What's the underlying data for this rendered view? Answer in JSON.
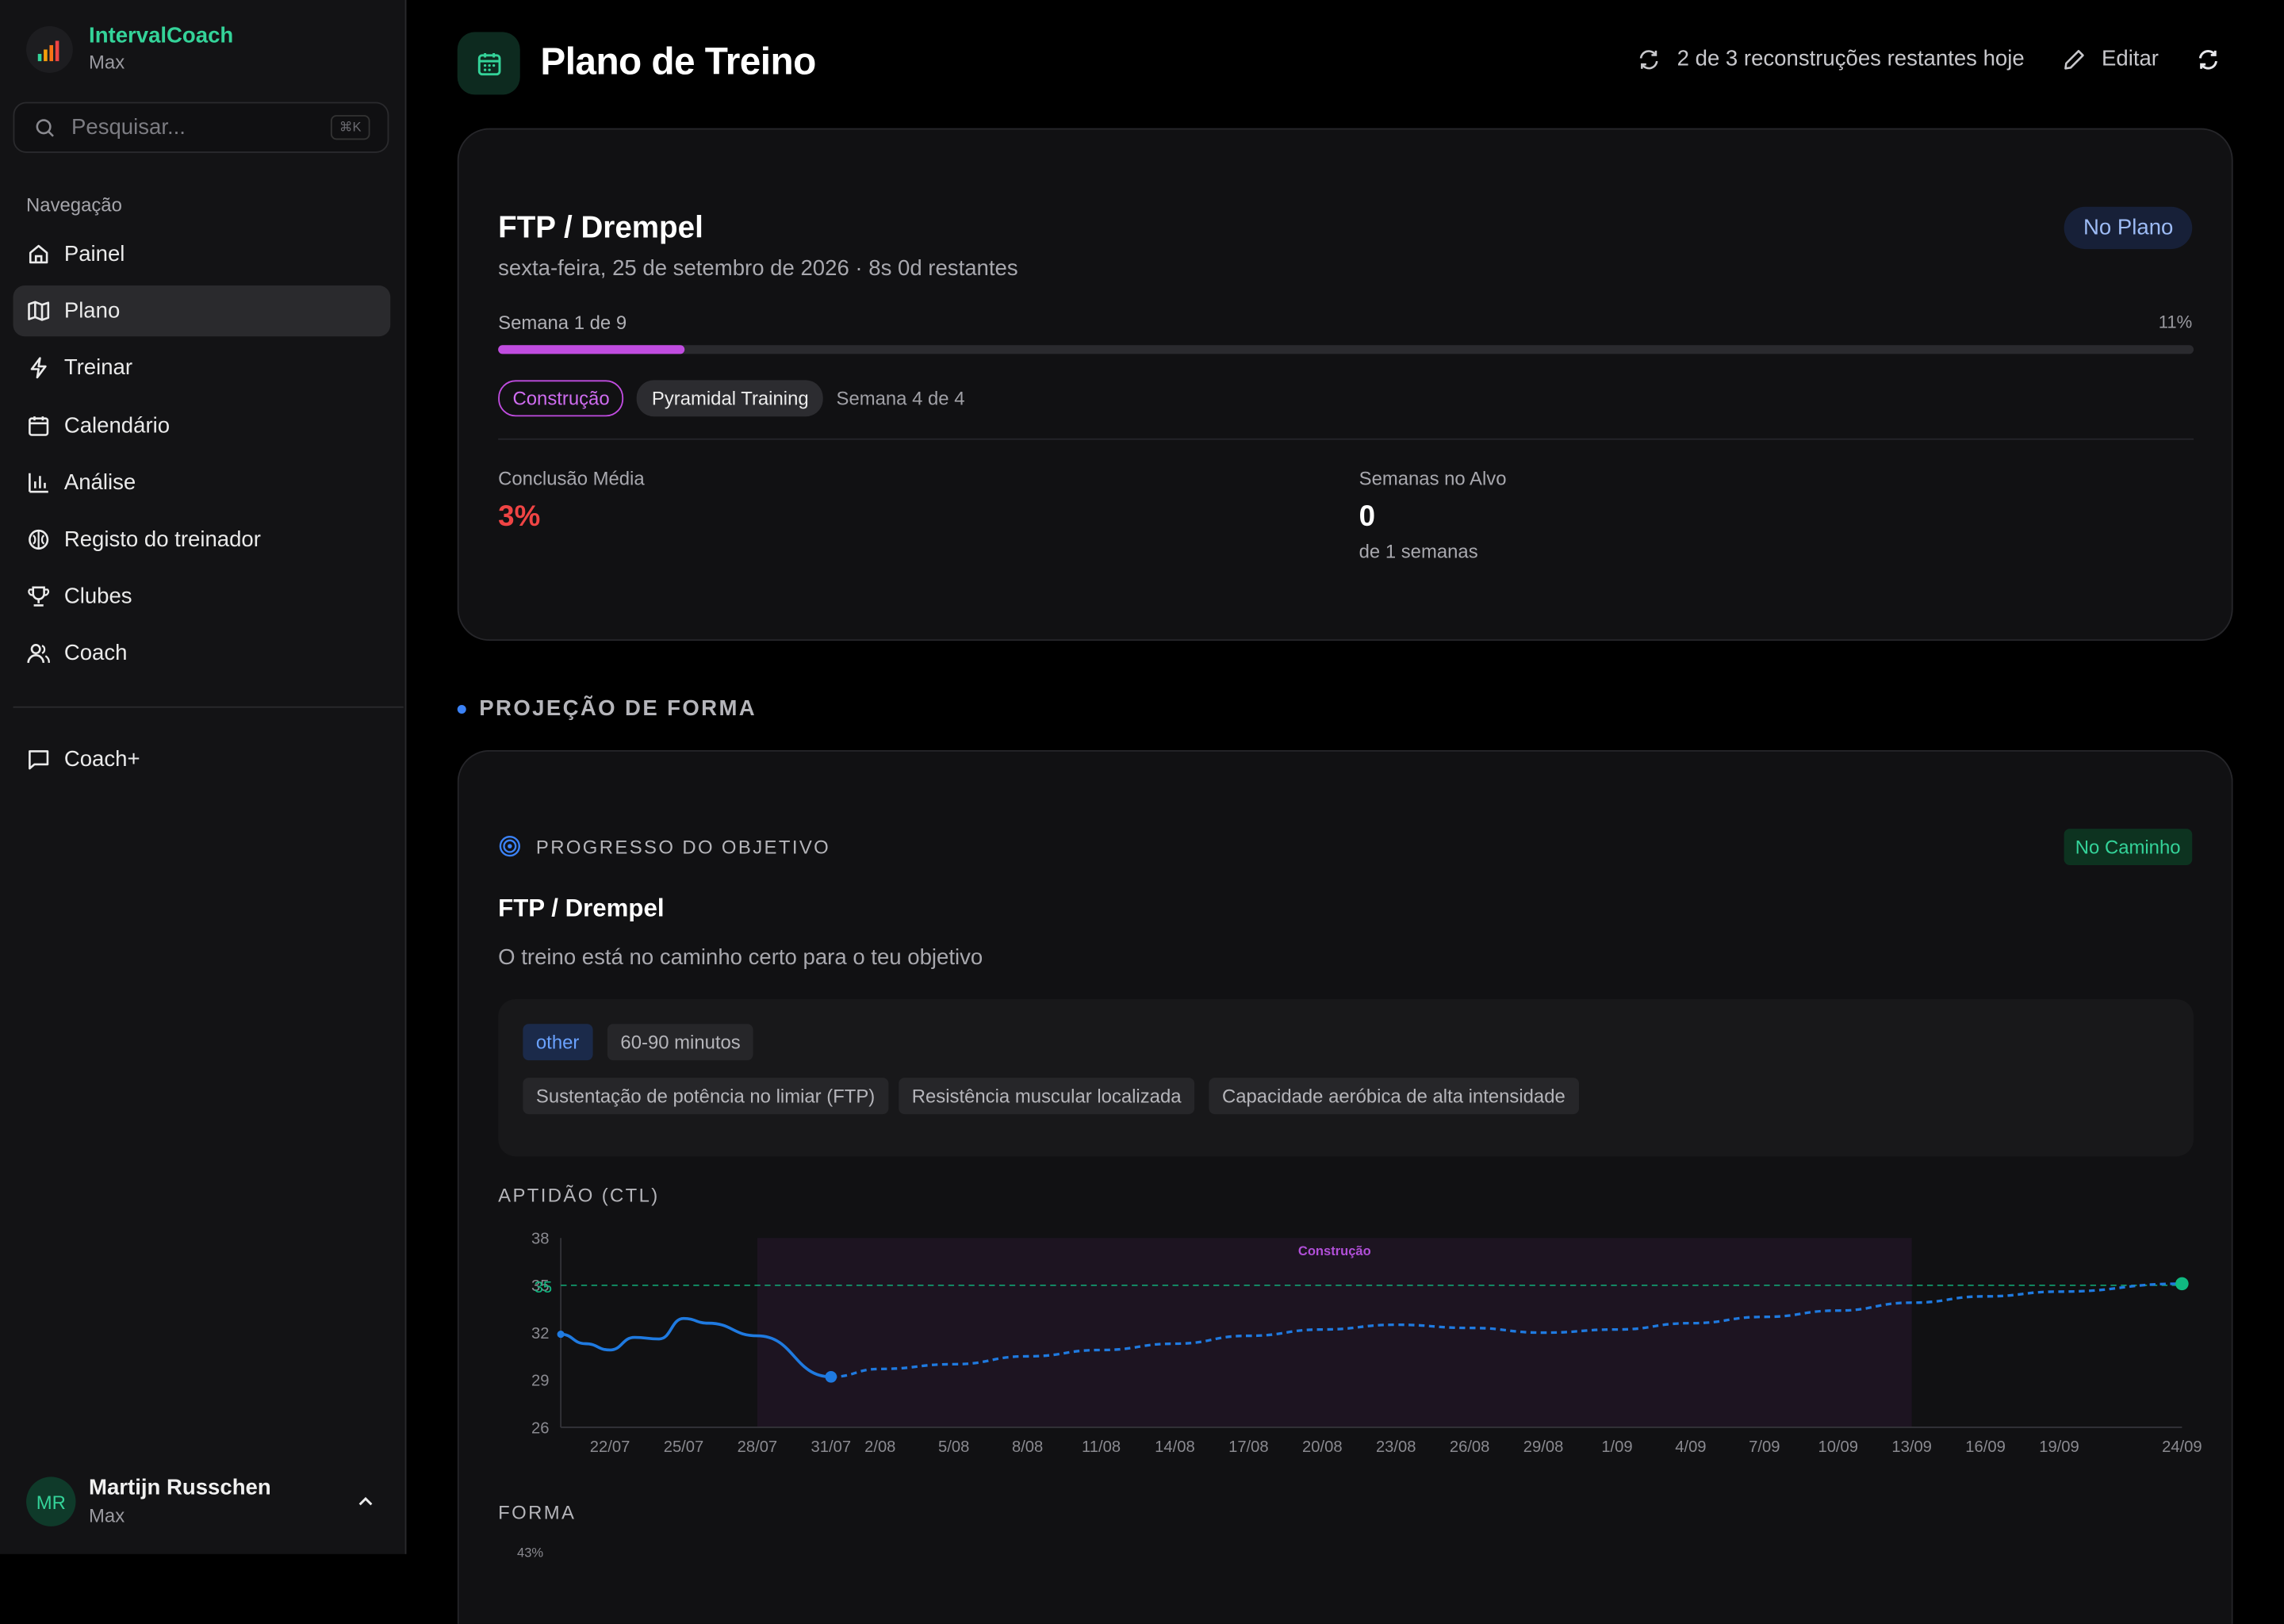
{
  "app": {
    "name": "IntervalCoach",
    "user_tier": "Max"
  },
  "search": {
    "placeholder": "Pesquisar...",
    "shortcut": "⌘K"
  },
  "nav": {
    "heading": "Navegação",
    "items": [
      {
        "label": "Painel",
        "icon": "home-icon"
      },
      {
        "label": "Plano",
        "icon": "map-icon",
        "active": true
      },
      {
        "label": "Treinar",
        "icon": "bolt-icon"
      },
      {
        "label": "Calendário",
        "icon": "calendar-icon"
      },
      {
        "label": "Análise",
        "icon": "bar-chart-icon"
      },
      {
        "label": "Registo do treinador",
        "icon": "brain-icon"
      },
      {
        "label": "Clubes",
        "icon": "trophy-icon"
      },
      {
        "label": "Coach",
        "icon": "users-icon"
      }
    ],
    "coach_plus": "Coach+"
  },
  "user": {
    "initials": "MR",
    "name": "Martijn Russchen",
    "tier": "Max"
  },
  "header": {
    "title": "Plano de Treino",
    "rebuilds": "2 de 3 reconstruções restantes hoje",
    "edit": "Editar"
  },
  "plan": {
    "goal": "FTP / Drempel",
    "date": "sexta-feira, 25 de setembro de 2026 · 8s 0d restantes",
    "status": "No Plano",
    "week_label": "Semana 1 de 9",
    "progress_label": "11%",
    "progress": 0.11,
    "phase": "Construção",
    "block": "Pyramidal Training",
    "block_week": "Semana 4 de 4",
    "avg_completion_label": "Conclusão Média",
    "avg_completion": "3%",
    "weeks_on_target_label": "Semanas no Alvo",
    "weeks_on_target": "0",
    "weeks_on_target_sub": "de 1 semanas"
  },
  "section": {
    "title": "PROJEÇÃO DE FORMA"
  },
  "goal_progress": {
    "title": "PROGRESSO DO OBJETIVO",
    "status": "No Caminho",
    "goal": "FTP / Drempel",
    "description": "O treino está no caminho certo para o teu objetivo",
    "tags": [
      "other",
      "60-90 minutos"
    ],
    "focus": [
      "Sustentação de potência no limiar (FTP)",
      "Resistência muscular localizada",
      "Capacidade aeróbica de alta intensidade"
    ]
  },
  "colors": {
    "accent": "#34d399",
    "phase": "#c04ce0",
    "series": "#1f7ae0",
    "target": "#10b981",
    "danger": "#ef4444"
  },
  "chart_data": {
    "type": "line",
    "title": "APTIDÃO (CTL)",
    "ylim": [
      26,
      38
    ],
    "yticks": [
      "38",
      "35",
      "32",
      "29",
      "26"
    ],
    "target": 35,
    "target_label": "35",
    "phase_band": {
      "label": "Construção",
      "from": "28/07",
      "to": "13/09"
    },
    "xticks": [
      "22/07",
      "25/07",
      "28/07",
      "31/07",
      "2/08",
      "5/08",
      "8/08",
      "11/08",
      "14/08",
      "17/08",
      "20/08",
      "23/08",
      "26/08",
      "29/08",
      "1/09",
      "4/09",
      "7/09",
      "10/09",
      "13/09",
      "16/09",
      "19/09",
      "24/09"
    ],
    "series": [
      {
        "style": "solid",
        "points": [
          [
            "20/07",
            31.9
          ],
          [
            "21/07",
            31.3
          ],
          [
            "22/07",
            30.9
          ],
          [
            "23/07",
            31.7
          ],
          [
            "24/07",
            31.6
          ],
          [
            "25/07",
            32.9
          ],
          [
            "26/07",
            32.6
          ],
          [
            "28/07",
            31.8
          ],
          [
            "31/07",
            29.2
          ]
        ]
      },
      {
        "style": "dashed",
        "points": [
          [
            "31/07",
            29.2
          ],
          [
            "2/08",
            29.7
          ],
          [
            "5/08",
            30.0
          ],
          [
            "8/08",
            30.5
          ],
          [
            "11/08",
            30.9
          ],
          [
            "14/08",
            31.3
          ],
          [
            "17/08",
            31.8
          ],
          [
            "20/08",
            32.2
          ],
          [
            "23/08",
            32.5
          ],
          [
            "26/08",
            32.3
          ],
          [
            "29/08",
            32.0
          ],
          [
            "1/09",
            32.2
          ],
          [
            "4/09",
            32.6
          ],
          [
            "7/09",
            33.0
          ],
          [
            "10/09",
            33.4
          ],
          [
            "13/09",
            33.9
          ],
          [
            "16/09",
            34.3
          ],
          [
            "19/09",
            34.6
          ],
          [
            "24/09",
            35.1
          ]
        ]
      }
    ]
  },
  "forma": {
    "title": "FORMA",
    "tick": "43%"
  }
}
